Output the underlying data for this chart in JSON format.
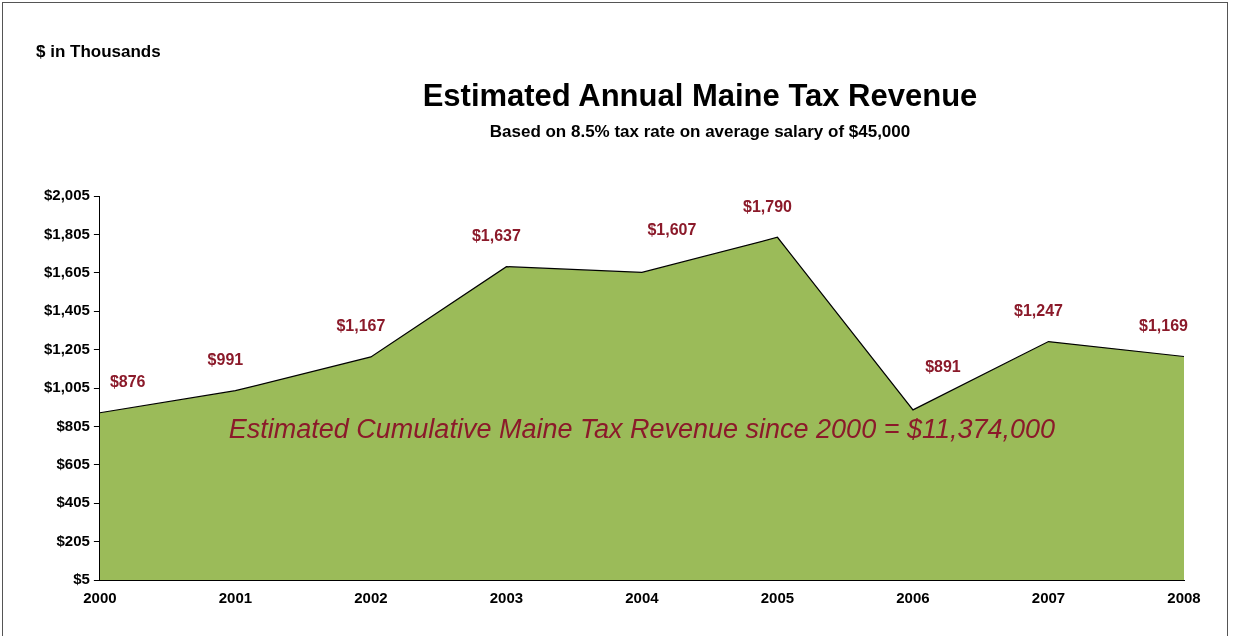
{
  "chart_data": {
    "type": "area",
    "title": "Estimated Annual Maine Tax Revenue",
    "subtitle": "Based on 8.5% tax rate on average salary of $45,000",
    "categories": [
      "2000",
      "2001",
      "2002",
      "2003",
      "2004",
      "2005",
      "2006",
      "2007",
      "2008"
    ],
    "series": [
      {
        "color": "#9bbb59",
        "values": [
          876,
          991,
          1167,
          1637,
          1607,
          1790,
          891,
          1247,
          1169
        ],
        "value_labels": [
          "$876",
          "$991",
          "$1,167",
          "$1,637",
          "$1,607",
          "$1,790",
          "$891",
          "$1,247",
          "$1,169"
        ]
      }
    ],
    "ylim": [
      5,
      2005
    ],
    "yticks": [
      {
        "value": 5,
        "label": "$5"
      },
      {
        "value": 205,
        "label": "$205"
      },
      {
        "value": 405,
        "label": "$405"
      },
      {
        "value": 605,
        "label": "$605"
      },
      {
        "value": 805,
        "label": "$805"
      },
      {
        "value": 1005,
        "label": "$1,005"
      },
      {
        "value": 1205,
        "label": "$1,205"
      },
      {
        "value": 1405,
        "label": "$1,405"
      },
      {
        "value": 1605,
        "label": "$1,605"
      },
      {
        "value": 1805,
        "label": "$1,805"
      },
      {
        "value": 2005,
        "label": "$2,005"
      }
    ],
    "annotations": [
      "$ in Thousands",
      "Estimated Cumulative Maine Tax Revenue since 2000 = $11,374,000"
    ],
    "grid": false,
    "legend": false
  }
}
